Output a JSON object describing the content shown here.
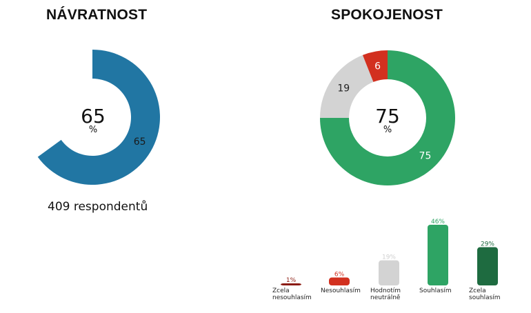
{
  "navratnost": {
    "title": "NÁVRATNOST",
    "center_value": "65",
    "center_unit": "%",
    "respondents": "409 respondentů"
  },
  "spokojenost": {
    "title": "SPOKOJENOST",
    "center_value": "75",
    "center_unit": "%"
  },
  "chart_data": [
    {
      "type": "pie",
      "variant": "donut",
      "title": "NÁVRATNOST",
      "slices": [
        {
          "label": "65",
          "value": 65,
          "color": "#2176a3"
        }
      ],
      "total": 100
    },
    {
      "type": "pie",
      "variant": "donut",
      "title": "SPOKOJENOST",
      "slices": [
        {
          "label": "75",
          "value": 75,
          "color": "#2ea464"
        },
        {
          "label": "19",
          "value": 19,
          "color": "#d3d3d3"
        },
        {
          "label": "6",
          "value": 6,
          "color": "#d2301f"
        }
      ],
      "total": 100
    },
    {
      "type": "bar",
      "categories": [
        [
          "Zcela",
          "nesouhlasím"
        ],
        [
          "Nesouhlasím"
        ],
        [
          "Hodnotím",
          "neutrálně"
        ],
        [
          "Souhlasím"
        ],
        [
          "Zcela",
          "souhlasím"
        ]
      ],
      "values": [
        1,
        6,
        19,
        46,
        29
      ],
      "value_labels": [
        "1%",
        "6%",
        "19%",
        "46%",
        "29%"
      ],
      "colors": [
        "#8b1a10",
        "#d2301f",
        "#d3d3d3",
        "#2ea464",
        "#1e6b40"
      ],
      "label_colors": [
        "#8b1a10",
        "#d2301f",
        "#cfcfcf",
        "#2ea464",
        "#1e6b40"
      ],
      "ylim": [
        0,
        46
      ]
    }
  ]
}
